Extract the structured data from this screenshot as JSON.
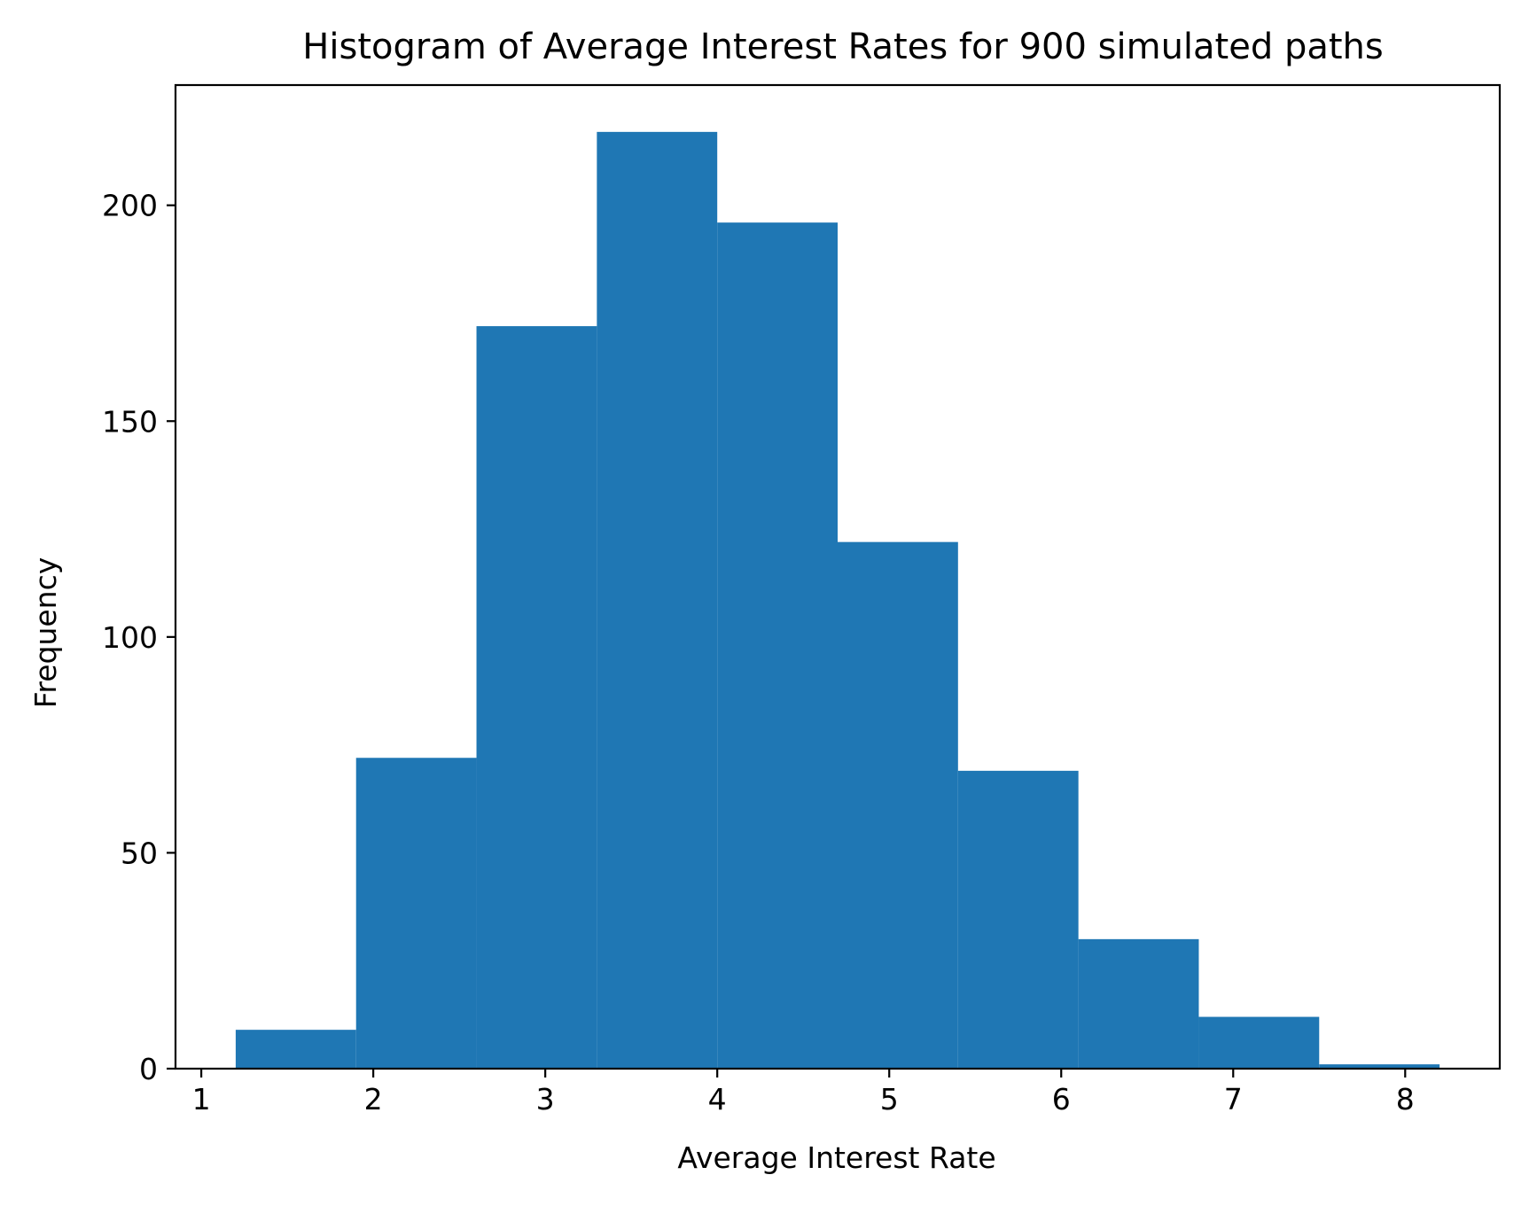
{
  "chart_data": {
    "type": "bar",
    "title": "Histogram of Average Interest Rates for 900 simulated paths",
    "xlabel": "Average Interest Rate",
    "ylabel": "Frequency",
    "bin_edges": [
      1.2,
      1.9,
      2.6,
      3.3,
      4.0,
      4.7,
      5.4,
      6.1,
      6.8,
      7.5,
      8.2
    ],
    "values": [
      9,
      72,
      172,
      217,
      196,
      122,
      69,
      30,
      12,
      1
    ],
    "xlim": [
      0.85,
      8.55
    ],
    "ylim": [
      0,
      227.85
    ],
    "xticks": [
      1,
      2,
      3,
      4,
      5,
      6,
      7,
      8
    ],
    "xtick_labels": [
      "1",
      "2",
      "3",
      "4",
      "5",
      "6",
      "7",
      "8"
    ],
    "yticks": [
      0,
      50,
      100,
      150,
      200
    ],
    "ytick_labels": [
      "0",
      "50",
      "100",
      "150",
      "200"
    ],
    "grid": false,
    "bar_color": "#1f77b4"
  }
}
